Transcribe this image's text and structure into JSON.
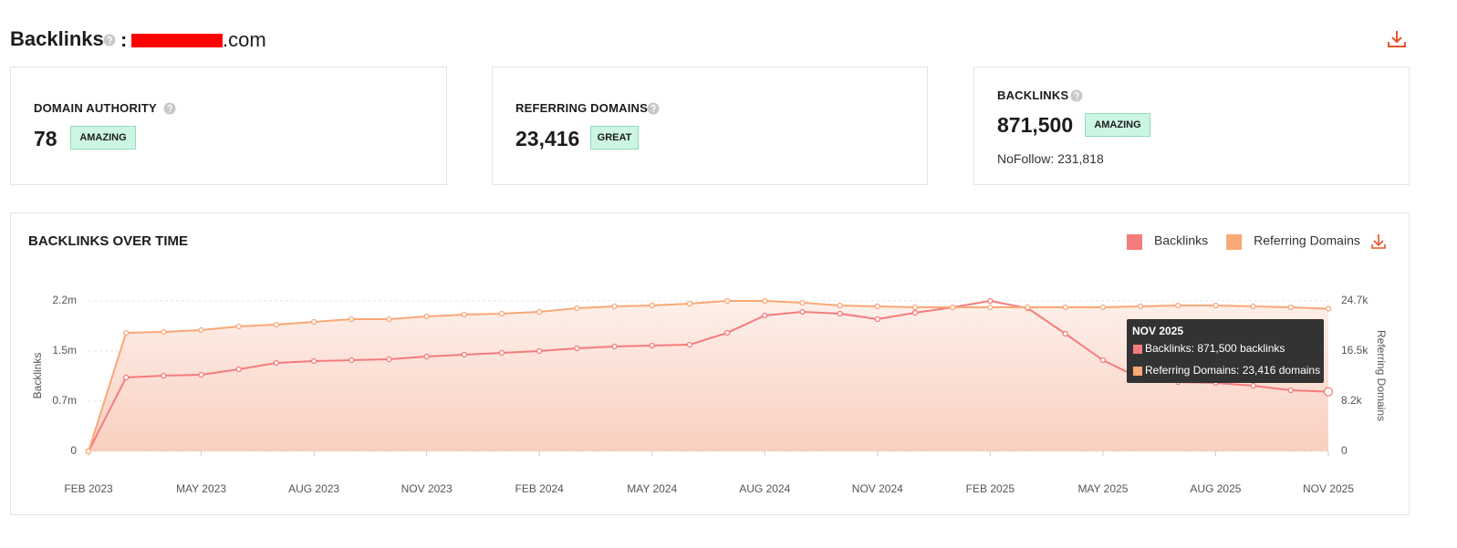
{
  "header": {
    "title": "Backlinks",
    "separator": ":",
    "domain_suffix": ".com"
  },
  "cards": [
    {
      "label": "DOMAIN AUTHORITY",
      "value": "78",
      "badge": "AMAZING"
    },
    {
      "label": "REFERRING DOMAINS",
      "value": "23,416",
      "badge": "GREAT"
    },
    {
      "label": "BACKLINKS",
      "value": "871,500",
      "badge": "AMAZING",
      "note": "NoFollow: 231,818"
    }
  ],
  "chart_data": {
    "type": "line",
    "title": "BACKLINKS OVER TIME",
    "categories": [
      "FEB 2023",
      null,
      null,
      "MAY 2023",
      null,
      null,
      "AUG 2023",
      null,
      null,
      "NOV 2023",
      null,
      null,
      "FEB 2024",
      null,
      null,
      "MAY 2024",
      null,
      null,
      "AUG 2024",
      null,
      null,
      "NOV 2024",
      null,
      null,
      "FEB 2025",
      null,
      null,
      "MAY 2025",
      null,
      null,
      "AUG 2025",
      null,
      null,
      "NOV 2025"
    ],
    "y_label": "Backlinks",
    "y2_label": "Referring Domains",
    "ylim": [
      0,
      2200000
    ],
    "yticks": [
      0,
      {
        "value": 733333,
        "label": "0.7m"
      },
      {
        "value": 1466667,
        "label": "1.5m"
      },
      {
        "value": 2200000,
        "label": "2.2m"
      }
    ],
    "y2lim": [
      0,
      24700
    ],
    "y2ticks": [
      0,
      {
        "value": 8233,
        "label": "8.2k"
      },
      {
        "value": 16467,
        "label": "16.5k"
      },
      {
        "value": 24700,
        "label": "24.7k"
      }
    ],
    "grid": true,
    "legend": "top-right",
    "series": [
      {
        "name": "Backlinks",
        "color": "#f47c7c",
        "values": [
          0,
          1080000,
          1107000,
          1120000,
          1200000,
          1293000,
          1320000,
          1333000,
          1347000,
          1387000,
          1413000,
          1440000,
          1467000,
          1507000,
          1533000,
          1547000,
          1560000,
          1733000,
          1987000,
          2040000,
          2013000,
          1933000,
          2027000,
          2107000,
          2200000,
          2093000,
          1720000,
          1333000,
          1067000,
          1013000,
          1000000,
          960000,
          893000,
          871500
        ]
      },
      {
        "name": "Referring Domains",
        "color": "#f9a877",
        "axis": "y2",
        "area": true,
        "values": [
          0,
          19460,
          19610,
          19910,
          20510,
          20810,
          21260,
          21710,
          21710,
          22150,
          22450,
          22600,
          22900,
          23500,
          23800,
          23950,
          24250,
          24700,
          24700,
          24400,
          23950,
          23800,
          23650,
          23650,
          23650,
          23650,
          23650,
          23650,
          23800,
          23950,
          23950,
          23800,
          23650,
          23416
        ]
      }
    ],
    "tooltip": {
      "title": "NOV 2025",
      "lines": [
        "Backlinks: 871,500 backlinks",
        "Referring Domains: 23,416 domains"
      ]
    }
  }
}
